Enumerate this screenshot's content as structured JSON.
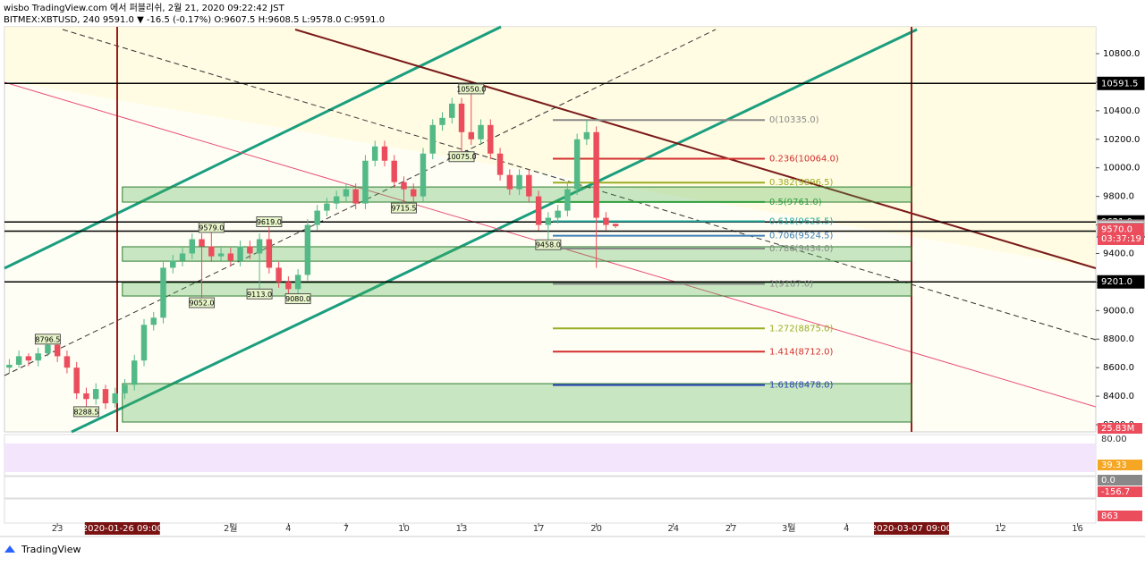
{
  "header": {
    "publisher": "wisbo TradingView.com 에서 퍼블리쉬, 2월 21, 2020 09:22:42 JST",
    "symbol": "BITMEX:XBTUSD, 240 9591.0 ▼ -16.5 (-0.17%) O:9607.5 H:9608.5 L:9578.0 C:9591.0"
  },
  "footer": "TradingView",
  "chart_data": {
    "type": "candlestick",
    "colors": {
      "up": "#53b987",
      "down": "#eb4d5c"
    },
    "candles": [
      [
        8600,
        8660,
        8560,
        8620
      ],
      [
        8620,
        8720,
        8600,
        8680
      ],
      [
        8680,
        8700,
        8610,
        8650
      ],
      [
        8650,
        8740,
        8610,
        8700
      ],
      [
        8700,
        8796.5,
        8680,
        8760
      ],
      [
        8760,
        8790,
        8640,
        8680
      ],
      [
        8680,
        8720,
        8560,
        8600
      ],
      [
        8600,
        8640,
        8380,
        8420
      ],
      [
        8420,
        8460,
        8288.5,
        8380
      ],
      [
        8380,
        8490,
        8340,
        8450
      ],
      [
        8450,
        8480,
        8310,
        8350
      ],
      [
        8350,
        8460,
        8320,
        8420
      ],
      [
        8420,
        8520,
        8380,
        8480
      ],
      [
        8480,
        8690,
        8440,
        8650
      ],
      [
        8650,
        8940,
        8610,
        8900
      ],
      [
        8900,
        8990,
        8860,
        8950
      ],
      [
        8950,
        9340,
        8910,
        9300
      ],
      [
        9300,
        9390,
        9260,
        9350
      ],
      [
        9350,
        9440,
        9310,
        9400
      ],
      [
        9400,
        9540,
        9360,
        9500
      ],
      [
        9500,
        9540,
        9052,
        9450
      ],
      [
        9450,
        9579,
        9340,
        9380
      ],
      [
        9380,
        9440,
        9340,
        9400
      ],
      [
        9400,
        9440,
        9310,
        9350
      ],
      [
        9350,
        9490,
        9310,
        9450
      ],
      [
        9450,
        9490,
        9360,
        9400
      ],
      [
        9400,
        9540,
        9113,
        9500
      ],
      [
        9500,
        9619,
        9260,
        9300
      ],
      [
        9300,
        9340,
        9160,
        9200
      ],
      [
        9200,
        9240,
        9110,
        9150
      ],
      [
        9150,
        9290,
        9080,
        9250
      ],
      [
        9250,
        9640,
        9210,
        9600
      ],
      [
        9600,
        9740,
        9560,
        9700
      ],
      [
        9700,
        9790,
        9660,
        9750
      ],
      [
        9750,
        9840,
        9710,
        9800
      ],
      [
        9800,
        9890,
        9760,
        9850
      ],
      [
        9850,
        9890,
        9710,
        9750
      ],
      [
        9750,
        10090,
        9710,
        10050
      ],
      [
        10050,
        10190,
        10010,
        10150
      ],
      [
        10150,
        10190,
        10010,
        10050
      ],
      [
        10050,
        10090,
        9860,
        9900
      ],
      [
        9900,
        9940,
        9715.5,
        9850
      ],
      [
        9850,
        9890,
        9760,
        9800
      ],
      [
        9800,
        10140,
        9760,
        10100
      ],
      [
        10100,
        10340,
        10060,
        10300
      ],
      [
        10300,
        10390,
        10260,
        10350
      ],
      [
        10350,
        10490,
        10310,
        10450
      ],
      [
        10450,
        10490,
        10075,
        10250
      ],
      [
        10250,
        10550,
        10160,
        10200
      ],
      [
        10200,
        10340,
        10160,
        10300
      ],
      [
        10300,
        10340,
        10060,
        10100
      ],
      [
        10100,
        10140,
        9910,
        9950
      ],
      [
        9950,
        9990,
        9810,
        9850
      ],
      [
        9850,
        9990,
        9810,
        9950
      ],
      [
        9950,
        9990,
        9760,
        9800
      ],
      [
        9800,
        9840,
        9560,
        9600
      ],
      [
        9600,
        9690,
        9458,
        9650
      ],
      [
        9650,
        9740,
        9610,
        9700
      ],
      [
        9700,
        9890,
        9660,
        9850
      ],
      [
        9850,
        10240,
        9810,
        10200
      ],
      [
        10200,
        10335,
        10160,
        10250
      ],
      [
        10250,
        10290,
        9300,
        9650
      ],
      [
        9650,
        9690,
        9560,
        9600
      ],
      [
        9607.5,
        9608.5,
        9578,
        9591
      ]
    ],
    "xlim": [
      -0.5,
      112.9
    ],
    "xticks": [
      {
        "value": 5,
        "label": "23"
      },
      {
        "value": 11.75,
        "label": "2020-01-26  09:00"
      },
      {
        "value": 23,
        "label": "2월"
      },
      {
        "value": 29,
        "label": "4"
      },
      {
        "value": 35,
        "label": "7"
      },
      {
        "value": 41,
        "label": "10"
      },
      {
        "value": 47,
        "label": "13"
      },
      {
        "value": 55,
        "label": "17"
      },
      {
        "value": 61,
        "label": "20"
      },
      {
        "value": 69,
        "label": "24"
      },
      {
        "value": 75,
        "label": "27"
      },
      {
        "value": 81,
        "label": "3월"
      },
      {
        "value": 87,
        "label": "4"
      },
      {
        "value": 93.75,
        "label": "2020-03-07  09:00"
      },
      {
        "value": 103,
        "label": "12"
      },
      {
        "value": 111,
        "label": "16"
      }
    ],
    "ylim": [
      8150,
      10988
    ],
    "yticks": [
      {
        "value": 8200,
        "label": "8200.0"
      },
      {
        "value": 8400,
        "label": "8400.0"
      },
      {
        "value": 8600,
        "label": "8600.0"
      },
      {
        "value": 8800,
        "label": "8800.0"
      },
      {
        "value": 9000,
        "label": "9000.0"
      },
      {
        "value": 9200,
        "label": "9200.0"
      },
      {
        "value": 9400,
        "label": "9400.0"
      },
      {
        "value": 9600,
        "label": "9600.0"
      },
      {
        "value": 9800,
        "label": "9800.0"
      },
      {
        "value": 10000,
        "label": "10000.0"
      },
      {
        "value": 10200,
        "label": "10200.0"
      },
      {
        "value": 10400,
        "label": "10400.0"
      },
      {
        "value": 10600,
        "label": "10600.0"
      },
      {
        "value": 10800,
        "label": "10800.0"
      }
    ],
    "levels": [
      {
        "value": 10591.5,
        "label": "10591.5",
        "bg": "#000000",
        "fg": "#ffffff"
      },
      {
        "value": 9621,
        "label": "9621.0",
        "bg": "#000000",
        "fg": "#ffffff"
      },
      {
        "value": 9556.5,
        "label": "9556.5",
        "bg": "#ffffff",
        "fg": "#000000"
      },
      {
        "value": 9201,
        "label": "9201.0",
        "bg": "#000000",
        "fg": "#ffffff"
      }
    ],
    "price_labels": [
      {
        "value": 9591,
        "label": "9591.0",
        "bg": "#eb4d5c",
        "fg": "#ffffff"
      },
      {
        "value": 9583,
        "label": "9583.0",
        "bg": "#ffffff",
        "fg": "#000000"
      },
      {
        "value": 9570,
        "label": "9570.0",
        "bg": "#eb4d5c",
        "fg": "#ffffff"
      }
    ],
    "countdown": "03:37:19",
    "zones": [
      [
        9760,
        9866
      ],
      [
        9346,
        9447
      ],
      [
        9102,
        9196
      ],
      [
        8219,
        8488
      ]
    ],
    "fib": [
      {
        "value": 10335,
        "label": "0(10335.0)",
        "color": "#888888"
      },
      {
        "value": 10064,
        "label": "0.236(10064.0)",
        "color": "#d32f2f"
      },
      {
        "value": 9896.5,
        "label": "0.382(9896.5)",
        "color": "#9aad24"
      },
      {
        "value": 9761,
        "label": "0.5(9761.0)",
        "color": "#2e9e3e"
      },
      {
        "value": 9625.5,
        "label": "0.618(9625.5)",
        "color": "#26a69a"
      },
      {
        "value": 9524.5,
        "label": "0.706(9524.5)",
        "color": "#3f7fb5"
      },
      {
        "value": 9434,
        "label": "0.786(9434.0)",
        "color": "#888888"
      },
      {
        "value": 9187,
        "label": "1(9187.0)",
        "color": "#888888"
      },
      {
        "value": 8875,
        "label": "1.272(8875.0)",
        "color": "#9aad24"
      },
      {
        "value": 8712,
        "label": "1.414(8712.0)",
        "color": "#d32f2f"
      },
      {
        "value": 8478,
        "label": "1.618(8478.0)",
        "color": "#2844b5"
      }
    ],
    "annotations": [
      {
        "x": 4,
        "value": 8796.5,
        "label": "8796.5"
      },
      {
        "x": 8,
        "value": 8288.5,
        "label": "8288.5"
      },
      {
        "x": 21,
        "value": 9579,
        "label": "9579.0"
      },
      {
        "x": 20,
        "value": 9052,
        "label": "9052.0"
      },
      {
        "x": 27,
        "value": 9619,
        "label": "9619.0"
      },
      {
        "x": 26,
        "value": 9113,
        "label": "9113.0"
      },
      {
        "x": 30,
        "value": 9080,
        "label": "9080.0"
      },
      {
        "x": 41,
        "value": 9715.5,
        "label": "9715.5"
      },
      {
        "x": 48,
        "value": 10550,
        "label": "10550.0"
      },
      {
        "x": 47,
        "value": 10075,
        "label": "10075.0"
      },
      {
        "x": 56,
        "value": 9458,
        "label": "9458.0"
      }
    ],
    "pane_labels": {
      "volume": "25.83M",
      "rsi_top": "80.00",
      "rsi": "39.33",
      "macd_zero": "0.0",
      "macd": "-156.7",
      "ind": "863"
    }
  }
}
